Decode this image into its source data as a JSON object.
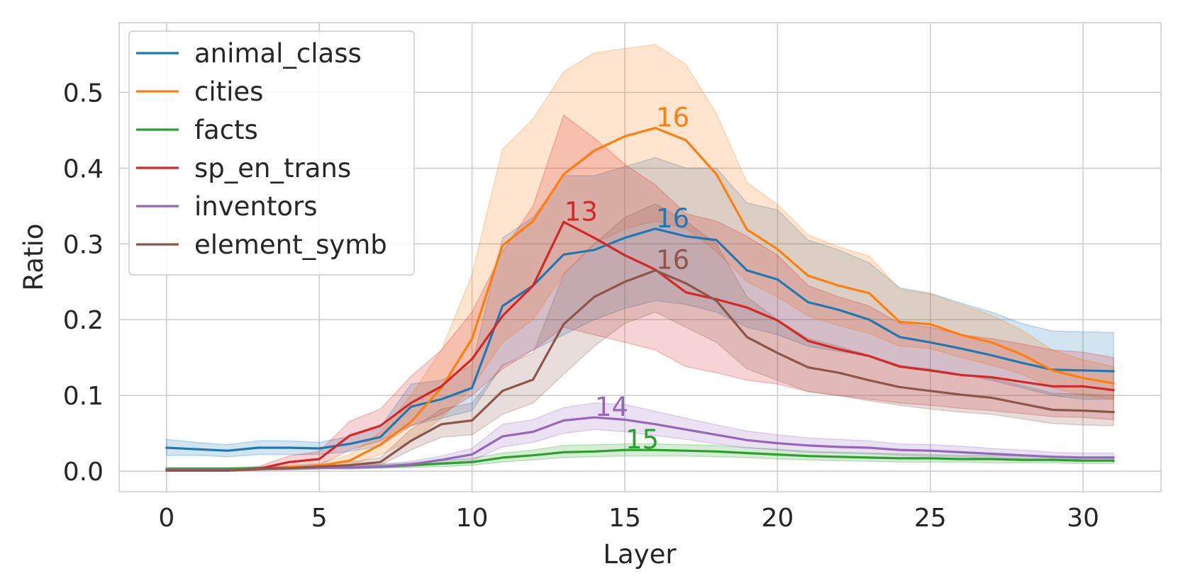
{
  "chart_data": {
    "type": "line",
    "title": "",
    "xlabel": "Layer",
    "ylabel": "Ratio",
    "xlim": [
      -1.55,
      32.55
    ],
    "ylim": [
      -0.027,
      0.592
    ],
    "xticks": [
      0,
      5,
      10,
      15,
      20,
      25,
      30
    ],
    "yticks": [
      0.0,
      0.1,
      0.2,
      0.3,
      0.4,
      0.5
    ],
    "xtick_labels": [
      "0",
      "5",
      "10",
      "15",
      "20",
      "25",
      "30"
    ],
    "ytick_labels": [
      "0.0",
      "0.1",
      "0.2",
      "0.3",
      "0.4",
      "0.5"
    ],
    "grid": true,
    "legend_position": "top-left",
    "x": [
      0,
      1,
      2,
      3,
      4,
      5,
      6,
      7,
      8,
      9,
      10,
      11,
      12,
      13,
      14,
      15,
      16,
      17,
      18,
      19,
      20,
      21,
      22,
      23,
      24,
      25,
      26,
      27,
      28,
      29,
      30,
      31
    ],
    "series": [
      {
        "name": "animal_class",
        "color": "#1f77b4",
        "values": [
          0.031,
          0.029,
          0.027,
          0.031,
          0.031,
          0.03,
          0.036,
          0.045,
          0.085,
          0.095,
          0.11,
          0.218,
          0.245,
          0.286,
          0.292,
          0.308,
          0.32,
          0.31,
          0.305,
          0.265,
          0.253,
          0.223,
          0.213,
          0.2,
          0.177,
          0.17,
          0.162,
          0.153,
          0.143,
          0.134,
          0.133,
          0.132
        ],
        "lower": [
          0.021,
          0.021,
          0.019,
          0.022,
          0.022,
          0.022,
          0.026,
          0.033,
          0.06,
          0.07,
          0.08,
          0.14,
          0.16,
          0.18,
          0.2,
          0.215,
          0.225,
          0.22,
          0.21,
          0.19,
          0.18,
          0.165,
          0.158,
          0.152,
          0.138,
          0.135,
          0.128,
          0.12,
          0.11,
          0.1,
          0.095,
          0.095
        ],
        "upper": [
          0.042,
          0.038,
          0.035,
          0.04,
          0.04,
          0.038,
          0.046,
          0.058,
          0.115,
          0.12,
          0.14,
          0.308,
          0.335,
          0.39,
          0.39,
          0.402,
          0.414,
          0.4,
          0.4,
          0.354,
          0.345,
          0.305,
          0.292,
          0.275,
          0.242,
          0.235,
          0.222,
          0.21,
          0.195,
          0.185,
          0.184,
          0.183
        ]
      },
      {
        "name": "cities",
        "color": "#ff7f0e",
        "values": [
          0.002,
          0.002,
          0.002,
          0.003,
          0.005,
          0.007,
          0.014,
          0.035,
          0.065,
          0.11,
          0.175,
          0.298,
          0.33,
          0.392,
          0.423,
          0.442,
          0.453,
          0.437,
          0.392,
          0.319,
          0.293,
          0.258,
          0.245,
          0.235,
          0.197,
          0.194,
          0.18,
          0.17,
          0.154,
          0.133,
          0.123,
          0.116
        ],
        "lower": [
          0.001,
          0.001,
          0.001,
          0.002,
          0.003,
          0.005,
          0.008,
          0.022,
          0.04,
          0.07,
          0.11,
          0.17,
          0.2,
          0.26,
          0.3,
          0.32,
          0.33,
          0.32,
          0.29,
          0.25,
          0.23,
          0.205,
          0.192,
          0.182,
          0.165,
          0.162,
          0.15,
          0.14,
          0.128,
          0.11,
          0.1,
          0.095
        ],
        "upper": [
          0.004,
          0.004,
          0.004,
          0.005,
          0.008,
          0.01,
          0.022,
          0.052,
          0.1,
          0.16,
          0.26,
          0.425,
          0.465,
          0.527,
          0.552,
          0.558,
          0.563,
          0.537,
          0.472,
          0.381,
          0.352,
          0.312,
          0.296,
          0.284,
          0.24,
          0.234,
          0.22,
          0.206,
          0.186,
          0.16,
          0.147,
          0.138
        ]
      },
      {
        "name": "facts",
        "color": "#2ca02c",
        "values": [
          0.003,
          0.003,
          0.003,
          0.004,
          0.004,
          0.005,
          0.005,
          0.006,
          0.008,
          0.01,
          0.012,
          0.018,
          0.021,
          0.025,
          0.026,
          0.028,
          0.028,
          0.027,
          0.026,
          0.024,
          0.022,
          0.02,
          0.019,
          0.018,
          0.017,
          0.017,
          0.016,
          0.016,
          0.015,
          0.015,
          0.014,
          0.014
        ],
        "lower": [
          0.001,
          0.001,
          0.001,
          0.002,
          0.002,
          0.003,
          0.003,
          0.004,
          0.005,
          0.006,
          0.008,
          0.012,
          0.015,
          0.018,
          0.019,
          0.02,
          0.02,
          0.02,
          0.019,
          0.018,
          0.016,
          0.015,
          0.014,
          0.013,
          0.012,
          0.012,
          0.012,
          0.011,
          0.011,
          0.011,
          0.01,
          0.01
        ],
        "upper": [
          0.005,
          0.005,
          0.005,
          0.006,
          0.006,
          0.007,
          0.008,
          0.009,
          0.011,
          0.014,
          0.017,
          0.024,
          0.028,
          0.034,
          0.035,
          0.036,
          0.036,
          0.035,
          0.034,
          0.031,
          0.029,
          0.026,
          0.025,
          0.024,
          0.023,
          0.022,
          0.021,
          0.021,
          0.02,
          0.02,
          0.019,
          0.019
        ]
      },
      {
        "name": "sp_en_trans",
        "color": "#d62728",
        "values": [
          0.001,
          0.001,
          0.001,
          0.003,
          0.012,
          0.016,
          0.047,
          0.06,
          0.09,
          0.112,
          0.148,
          0.205,
          0.245,
          0.329,
          0.308,
          0.285,
          0.266,
          0.236,
          0.227,
          0.216,
          0.199,
          0.172,
          0.161,
          0.152,
          0.138,
          0.133,
          0.127,
          0.124,
          0.118,
          0.112,
          0.112,
          0.107
        ],
        "lower": [
          0.0,
          0.0,
          0.0,
          0.001,
          0.006,
          0.008,
          0.028,
          0.04,
          0.06,
          0.075,
          0.1,
          0.135,
          0.16,
          0.19,
          0.18,
          0.17,
          0.16,
          0.138,
          0.13,
          0.12,
          0.115,
          0.105,
          0.1,
          0.095,
          0.09,
          0.087,
          0.083,
          0.08,
          0.076,
          0.072,
          0.071,
          0.068
        ],
        "upper": [
          0.002,
          0.002,
          0.002,
          0.006,
          0.02,
          0.026,
          0.066,
          0.082,
          0.125,
          0.16,
          0.21,
          0.29,
          0.35,
          0.47,
          0.44,
          0.405,
          0.378,
          0.34,
          0.33,
          0.31,
          0.285,
          0.245,
          0.23,
          0.218,
          0.195,
          0.19,
          0.18,
          0.175,
          0.168,
          0.16,
          0.157,
          0.15
        ]
      },
      {
        "name": "inventors",
        "color": "#9467bd",
        "values": [
          0.002,
          0.002,
          0.002,
          0.003,
          0.004,
          0.005,
          0.005,
          0.006,
          0.009,
          0.015,
          0.022,
          0.046,
          0.052,
          0.067,
          0.071,
          0.068,
          0.062,
          0.055,
          0.048,
          0.041,
          0.037,
          0.034,
          0.032,
          0.031,
          0.028,
          0.027,
          0.025,
          0.023,
          0.021,
          0.019,
          0.018,
          0.018
        ],
        "lower": [
          0.001,
          0.001,
          0.001,
          0.002,
          0.002,
          0.003,
          0.003,
          0.004,
          0.006,
          0.01,
          0.014,
          0.032,
          0.038,
          0.05,
          0.055,
          0.052,
          0.047,
          0.042,
          0.036,
          0.031,
          0.028,
          0.025,
          0.024,
          0.023,
          0.021,
          0.02,
          0.019,
          0.017,
          0.016,
          0.014,
          0.013,
          0.013
        ],
        "upper": [
          0.004,
          0.004,
          0.004,
          0.005,
          0.006,
          0.007,
          0.008,
          0.009,
          0.013,
          0.02,
          0.03,
          0.062,
          0.068,
          0.084,
          0.09,
          0.088,
          0.079,
          0.07,
          0.061,
          0.053,
          0.048,
          0.044,
          0.042,
          0.04,
          0.036,
          0.035,
          0.033,
          0.03,
          0.028,
          0.025,
          0.024,
          0.024
        ]
      },
      {
        "name": "element_symb",
        "color": "#8c564b",
        "values": [
          0.001,
          0.001,
          0.001,
          0.003,
          0.004,
          0.006,
          0.008,
          0.012,
          0.04,
          0.062,
          0.067,
          0.106,
          0.121,
          0.194,
          0.23,
          0.25,
          0.265,
          0.248,
          0.225,
          0.177,
          0.156,
          0.137,
          0.13,
          0.12,
          0.111,
          0.106,
          0.101,
          0.097,
          0.089,
          0.081,
          0.08,
          0.078
        ],
        "lower": [
          0.0,
          0.0,
          0.0,
          0.001,
          0.002,
          0.003,
          0.005,
          0.008,
          0.028,
          0.045,
          0.048,
          0.075,
          0.09,
          0.128,
          0.165,
          0.195,
          0.21,
          0.19,
          0.17,
          0.135,
          0.12,
          0.105,
          0.1,
          0.093,
          0.087,
          0.082,
          0.078,
          0.075,
          0.069,
          0.063,
          0.061,
          0.06
        ],
        "upper": [
          0.002,
          0.002,
          0.002,
          0.005,
          0.006,
          0.009,
          0.012,
          0.018,
          0.055,
          0.082,
          0.09,
          0.14,
          0.156,
          0.26,
          0.3,
          0.335,
          0.353,
          0.33,
          0.3,
          0.23,
          0.2,
          0.175,
          0.165,
          0.153,
          0.14,
          0.134,
          0.128,
          0.122,
          0.113,
          0.103,
          0.102,
          0.1
        ]
      }
    ],
    "annotations": [
      {
        "text": "16",
        "series": "cities",
        "x": 16,
        "y": 0.453
      },
      {
        "text": "16",
        "series": "animal_class",
        "x": 16,
        "y": 0.32
      },
      {
        "text": "13",
        "series": "sp_en_trans",
        "x": 13,
        "y": 0.329
      },
      {
        "text": "16",
        "series": "element_symb",
        "x": 16,
        "y": 0.265
      },
      {
        "text": "14",
        "series": "inventors",
        "x": 14,
        "y": 0.071
      },
      {
        "text": "15",
        "series": "facts",
        "x": 15,
        "y": 0.028
      }
    ]
  }
}
